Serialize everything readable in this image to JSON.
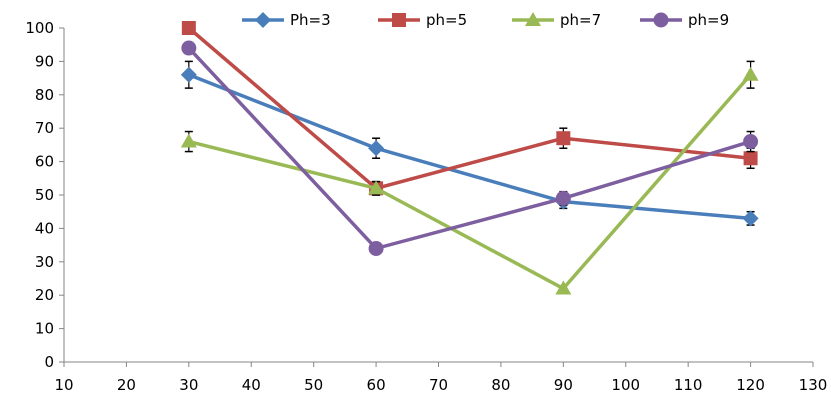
{
  "chart_data": {
    "type": "line",
    "title": "",
    "xlabel": "",
    "ylabel": "",
    "xlim": [
      10,
      130
    ],
    "ylim": [
      0,
      100
    ],
    "x_ticks": [
      10,
      20,
      30,
      40,
      50,
      60,
      70,
      80,
      90,
      100,
      110,
      120,
      130
    ],
    "y_ticks": [
      0,
      10,
      20,
      30,
      40,
      50,
      60,
      70,
      80,
      90,
      100
    ],
    "grid": false,
    "legend_position": "top",
    "series": [
      {
        "name": "Ph=3",
        "color": "#4a7ebb",
        "marker": "diamond",
        "x": [
          30,
          60,
          90,
          120
        ],
        "y": [
          86,
          64,
          48,
          43
        ],
        "err": [
          4,
          3,
          2,
          2
        ]
      },
      {
        "name": "ph=5",
        "color": "#be4b48",
        "marker": "square",
        "x": [
          30,
          60,
          90,
          120
        ],
        "y": [
          100,
          52,
          67,
          61
        ],
        "err": [
          0,
          2,
          3,
          3
        ]
      },
      {
        "name": "ph=7",
        "color": "#98b954",
        "marker": "triangle",
        "x": [
          30,
          60,
          90,
          120
        ],
        "y": [
          66,
          52,
          22,
          86
        ],
        "err": [
          3,
          2,
          0,
          4
        ]
      },
      {
        "name": "ph=9",
        "color": "#7d5fa0",
        "marker": "circle",
        "x": [
          30,
          60,
          90,
          120
        ],
        "y": [
          94,
          34,
          49,
          66
        ],
        "err": [
          0,
          0,
          2,
          3
        ]
      }
    ]
  }
}
